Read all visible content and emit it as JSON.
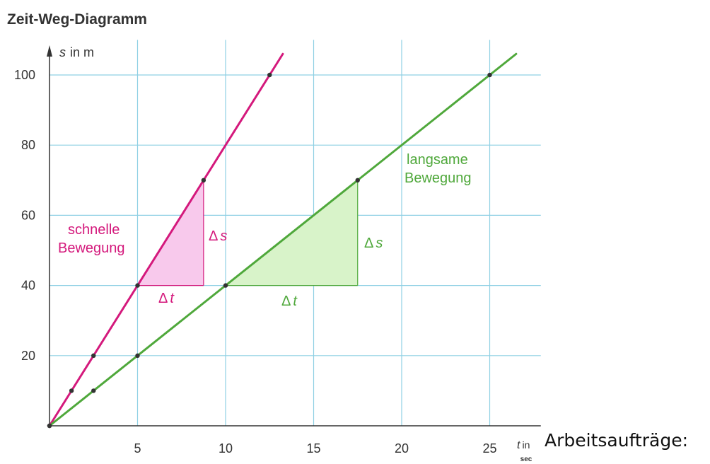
{
  "page": {
    "side_text": "Arbeitsaufträge:"
  },
  "chart_data": {
    "type": "line",
    "title": "Zeit-Weg-Diagramm",
    "y_axis": {
      "symbol": "s",
      "label_rest": "in   m",
      "ticks": [
        20,
        40,
        60,
        80,
        100
      ],
      "range": [
        0,
        110
      ]
    },
    "x_axis": {
      "symbol": "t",
      "label_rest": "in",
      "unit": "sec",
      "ticks": [
        5,
        10,
        15,
        20,
        25
      ],
      "range": [
        0,
        27.5
      ]
    },
    "grid": true,
    "series": [
      {
        "name": "schnelle Bewegung",
        "label_lines": [
          "schnelle",
          "Bewegung"
        ],
        "color": "#d4197c",
        "fill": "#f8c9ec",
        "x": [
          0,
          1.25,
          2.5,
          5,
          8.75,
          12.5
        ],
        "y": [
          0,
          10,
          20,
          40,
          70,
          100
        ],
        "line_to": [
          13.25,
          106
        ],
        "triangle": {
          "x0": 5,
          "x1": 8.75,
          "y0": 40,
          "y1": 70
        },
        "delta_s": "Δs",
        "delta_t": "Δt"
      },
      {
        "name": "langsame Bewegung",
        "label_lines": [
          "langsame",
          "Bewegung"
        ],
        "color": "#4fa83b",
        "fill": "#d8f3c9",
        "x": [
          0,
          2.5,
          5,
          10,
          17.5,
          25
        ],
        "y": [
          0,
          10,
          20,
          40,
          70,
          100
        ],
        "line_to": [
          26.5,
          106
        ],
        "triangle": {
          "x0": 10,
          "x1": 17.5,
          "y0": 40,
          "y1": 70
        },
        "delta_s": "Δs",
        "delta_t": "Δt"
      }
    ]
  }
}
